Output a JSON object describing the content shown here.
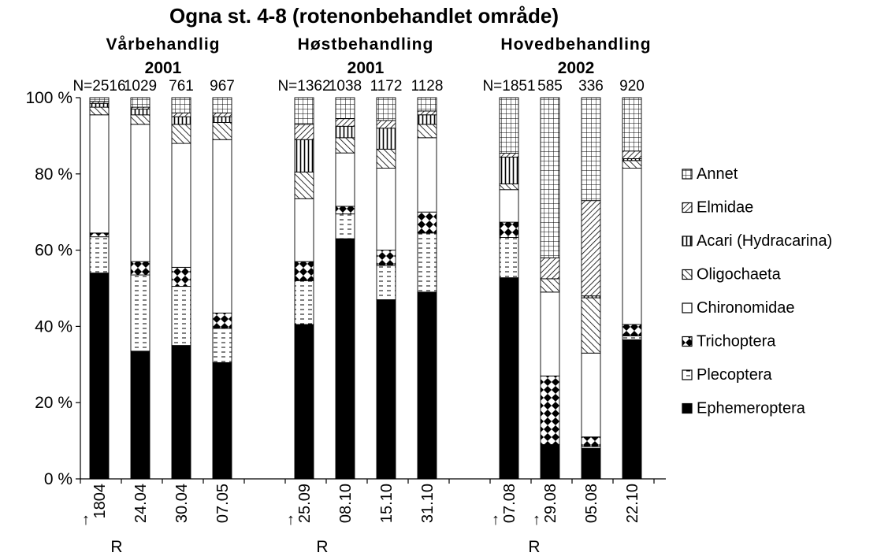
{
  "chart_data": {
    "type": "bar",
    "stacked": "percent",
    "title": "Ogna st. 4-8 (rotenonbehandlet område)",
    "groups": [
      {
        "name": "Vårbehandlig",
        "year": "2001"
      },
      {
        "name": "Høstbehandling",
        "year": "2001"
      },
      {
        "name": "Hovedbehandling",
        "year": "2002"
      }
    ],
    "y_ticks": [
      "0 %",
      "20 %",
      "40 %",
      "60 %",
      "80 %",
      "100 %"
    ],
    "ylim": [
      0,
      100
    ],
    "treatment_arrow": "↑",
    "treatment_label": "R",
    "series": [
      {
        "name": "Ephemeroptera",
        "pattern": "solid"
      },
      {
        "name": "Plecoptera",
        "pattern": "dashes"
      },
      {
        "name": "Trichoptera",
        "pattern": "diamonds"
      },
      {
        "name": "Chironomidae",
        "pattern": "empty"
      },
      {
        "name": "Oligochaeta",
        "pattern": "diagonal"
      },
      {
        "name": "Acari (Hydracarina)",
        "pattern": "vertical"
      },
      {
        "name": "Elmidae",
        "pattern": "diagonal-dense"
      },
      {
        "name": "Annet",
        "pattern": "grid"
      }
    ],
    "bars": [
      {
        "group": 0,
        "date": "1804",
        "n": "N=2516",
        "values": [
          54,
          9.5,
          1,
          31,
          2,
          1,
          0.5,
          1
        ],
        "treatment": true
      },
      {
        "group": 0,
        "date": "24.04",
        "n": "1029",
        "values": [
          33.5,
          20,
          3.5,
          36,
          2.5,
          1.5,
          0.5,
          2.5
        ]
      },
      {
        "group": 0,
        "date": "30.04",
        "n": "761",
        "values": [
          35,
          15.5,
          5,
          32.5,
          5,
          2,
          1,
          4
        ]
      },
      {
        "group": 0,
        "date": "07.05",
        "n": "967",
        "values": [
          30.5,
          9,
          4,
          45.5,
          4.5,
          1.5,
          1,
          4
        ]
      },
      {
        "group": 1,
        "date": "25.09",
        "n": "N=1362",
        "values": [
          40.5,
          11.5,
          5,
          16.5,
          7,
          8.5,
          4,
          7
        ],
        "treatment": true
      },
      {
        "group": 1,
        "date": "08.10",
        "n": "1038",
        "values": [
          63,
          6.5,
          2,
          14,
          4,
          3,
          2,
          5.5
        ]
      },
      {
        "group": 1,
        "date": "15.10",
        "n": "1172",
        "values": [
          47,
          9,
          4,
          21.5,
          5,
          5.5,
          2,
          6
        ]
      },
      {
        "group": 1,
        "date": "31.10",
        "n": "1128",
        "values": [
          49,
          15.5,
          5.5,
          19.5,
          3.5,
          2.5,
          1,
          3.5
        ]
      },
      {
        "group": 2,
        "date": "07.08",
        "n": "N=1851",
        "values": [
          52.5,
          10.5,
          4,
          8.5,
          1.5,
          7,
          1,
          14.5
        ],
        "treatment": true
      },
      {
        "group": 2,
        "date": "29.08",
        "n": "585",
        "values": [
          9,
          0,
          18,
          22,
          3.5,
          0,
          5.5,
          42
        ],
        "treatment": true
      },
      {
        "group": 2,
        "date": "05.08",
        "n": "336",
        "values": [
          8,
          0.5,
          2.5,
          22,
          14.5,
          0.5,
          25,
          27
        ]
      },
      {
        "group": 2,
        "date": "22.10",
        "n": "920",
        "values": [
          36.5,
          1,
          3,
          41,
          2,
          0.5,
          2,
          14
        ]
      }
    ]
  }
}
